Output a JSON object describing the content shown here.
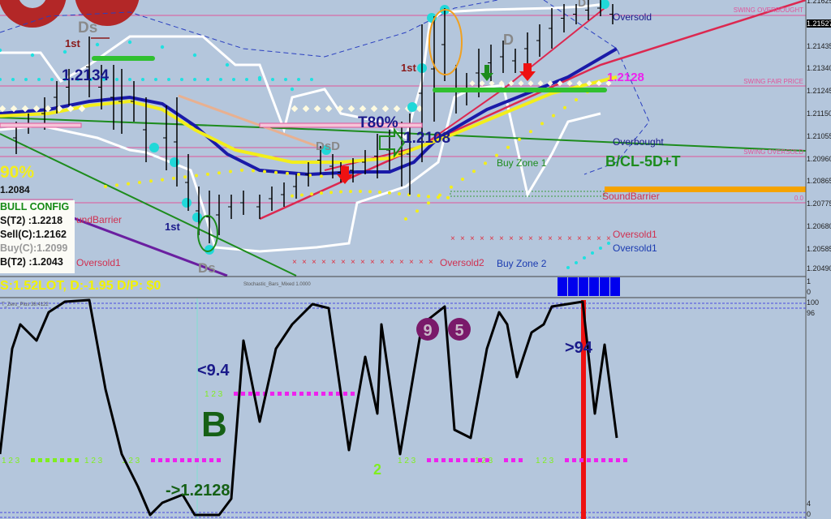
{
  "colors": {
    "background": "#b4c6dc",
    "swing_lines": "#e0559a",
    "blue_ma": "#1a1aa8",
    "yellow_ma": "#f3ee1a",
    "trend_red": "#dc2850",
    "trend_green": "#1d8c1d",
    "cloud": "#ffffff",
    "cyan_dots": "#20e0e0",
    "signal_bar": "#0000ee",
    "oscillator": "#000000",
    "marker_red": "#ee1111"
  },
  "main_chart": {
    "price_axis": [
      "1.21625",
      "1.21527",
      "1.21435",
      "1.21340",
      "1.21245",
      "1.21150",
      "1.21055",
      "1.20960",
      "1.20865",
      "1.20775",
      "1.20680",
      "1.20585",
      "1.20490"
    ],
    "current_price": "1.21527",
    "levels": {
      "swing_overbought": "SWING OVERBOUGHT",
      "swing_fair_price": "SWING FAIR PRICE",
      "swing_oversold": "SWING OVERSOLD",
      "zero": "0.0"
    },
    "labels": {
      "ds_top": "Ds",
      "ds_bottom": "Ds",
      "first_1": "1st",
      "first_2": "1st",
      "first_3": "1st",
      "price_1": "1.2134",
      "price_2": "1.2108",
      "price_3": "1.2128",
      "price_4": "1.2084",
      "t80": "T80%",
      "pct_left": "90%",
      "dsd": "DsD",
      "d1": "D",
      "d2": "D",
      "oversold_top": "Oversold",
      "overbought": "Overbought",
      "bcl": "B/CL-5D+T",
      "buy_zone_1": "Buy Zone 1",
      "buy_zone_2": "Buy Zone 2",
      "sound_barrier_left": "undBarrier",
      "sound_barrier_right": "SoundBarrier",
      "oversold1_left": "Oversold1",
      "oversold1_right": "Oversold1",
      "oversold2": "Oversold2",
      "oversold1_blue": "Oversold1",
      "round_top": "SoundBarrier"
    },
    "config": {
      "title": "BULL CONFIG",
      "rows": [
        "S(T2) :1.2218",
        "Sell(C):1.2162",
        "Buy(C):1.2099",
        "B(T2) :1.2043"
      ]
    }
  },
  "signal_panel": {
    "pnl_text": "S:1.52LOT, D:-1.95 D/P: $0",
    "indicator_label": "Stochastic_Bars_Mixed 1.0000",
    "axis": [
      "1",
      "0"
    ],
    "blue_blocks": 6
  },
  "oscillator": {
    "indicator_label": "T_Zero_Plus 38.4122",
    "axis": [
      "100",
      "96",
      "4",
      "0"
    ],
    "labels": {
      "lt_9_4": "<9.4",
      "gt_94": ">94",
      "b_big": "B",
      "arrow_price": "->1.2128",
      "n9": "9",
      "n5": "5",
      "two": "2",
      "seq": "1 2 3"
    }
  }
}
